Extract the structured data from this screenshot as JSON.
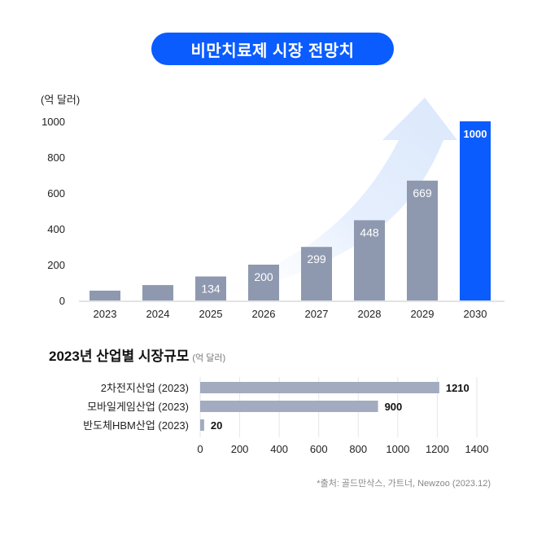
{
  "title": "비만치료제 시장 전망치",
  "chart_data": [
    {
      "type": "bar",
      "unit_label": "(억 달러)",
      "categories": [
        "2023",
        "2024",
        "2025",
        "2026",
        "2027",
        "2028",
        "2029",
        "2030"
      ],
      "values": [
        55,
        86,
        134,
        200,
        299,
        448,
        669,
        1000
      ],
      "data_labels": [
        "",
        "",
        "134",
        "200",
        "299",
        "448",
        "669",
        "1000"
      ],
      "ylim": [
        0,
        1000
      ],
      "yticks": [
        "0",
        "200",
        "400",
        "600",
        "800",
        "1000"
      ],
      "colors": {
        "bar": "#8e99b0",
        "highlight": "#0a5cff",
        "arrow": "#dfeafd"
      },
      "grid": false
    },
    {
      "type": "bar",
      "orientation": "horizontal",
      "title": "2023년 산업별 시장규모",
      "unit_label": "(억 달러)",
      "categories": [
        "2차전지산업 (2023)",
        "모바일게임산업 (2023)",
        "반도체HBM산업 (2023)"
      ],
      "values": [
        1210,
        900,
        20
      ],
      "data_labels": [
        "1210",
        "900",
        "20"
      ],
      "xlim": [
        0,
        1400
      ],
      "xticks": [
        "0",
        "200",
        "400",
        "600",
        "800",
        "1000",
        "1200",
        "1400"
      ],
      "colors": {
        "bar": "#a3abc0"
      },
      "grid": true
    }
  ],
  "source": "*출처: 골드만삭스, 가트너, Newzoo (2023.12)"
}
